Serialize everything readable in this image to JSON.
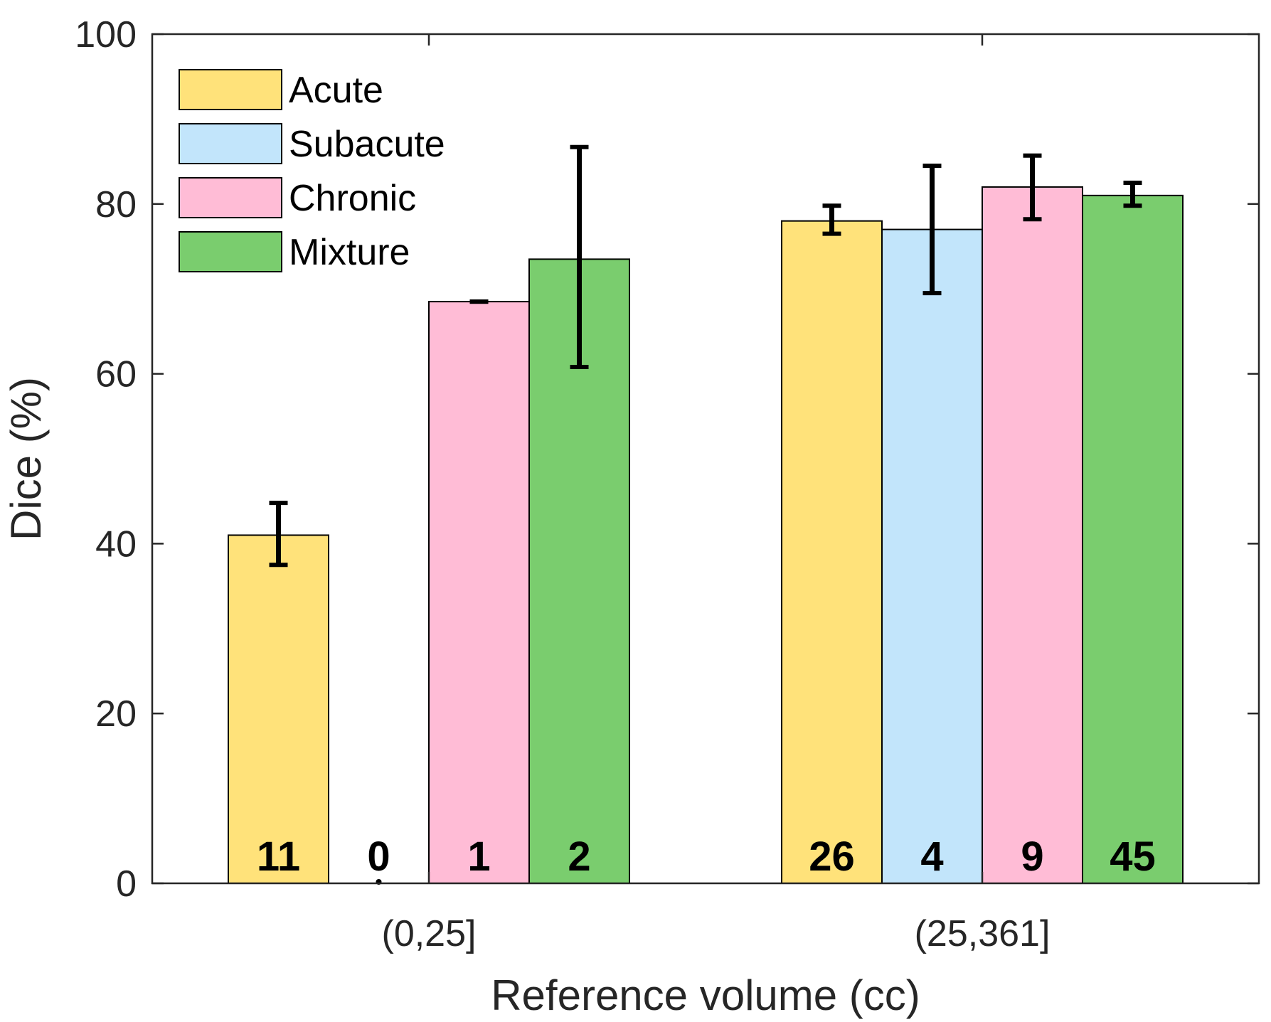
{
  "chart_data": {
    "type": "bar",
    "title": "",
    "xlabel": "Reference volume (cc)",
    "ylabel": "Dice (%)",
    "ylim": [
      0,
      100
    ],
    "yticks": [
      0,
      20,
      40,
      60,
      80,
      100
    ],
    "grid": false,
    "legend_position": "top-left",
    "categories": [
      "(0,25]",
      "(25,361]"
    ],
    "series": [
      {
        "name": "Acute",
        "color": "#FFE27A",
        "values": [
          41,
          78
        ],
        "err_low": [
          37.5,
          76.5
        ],
        "err_high": [
          44.8,
          79.8
        ],
        "counts": [
          "11",
          "26"
        ]
      },
      {
        "name": "Subacute",
        "color": "#C2E5FB",
        "values": [
          0,
          77
        ],
        "err_low": [
          null,
          69.5
        ],
        "err_high": [
          null,
          84.5
        ],
        "counts": [
          "0",
          "4"
        ]
      },
      {
        "name": "Chronic",
        "color": "#FFBCD6",
        "values": [
          68.5,
          82
        ],
        "err_low": [
          68.5,
          78.2
        ],
        "err_high": [
          68.5,
          85.7
        ],
        "counts": [
          "1",
          "9"
        ]
      },
      {
        "name": "Mixture",
        "color": "#7ACD6E",
        "values": [
          73.5,
          81
        ],
        "err_low": [
          60.8,
          79.8
        ],
        "err_high": [
          86.7,
          82.5
        ],
        "counts": [
          "2",
          "45"
        ]
      }
    ]
  }
}
